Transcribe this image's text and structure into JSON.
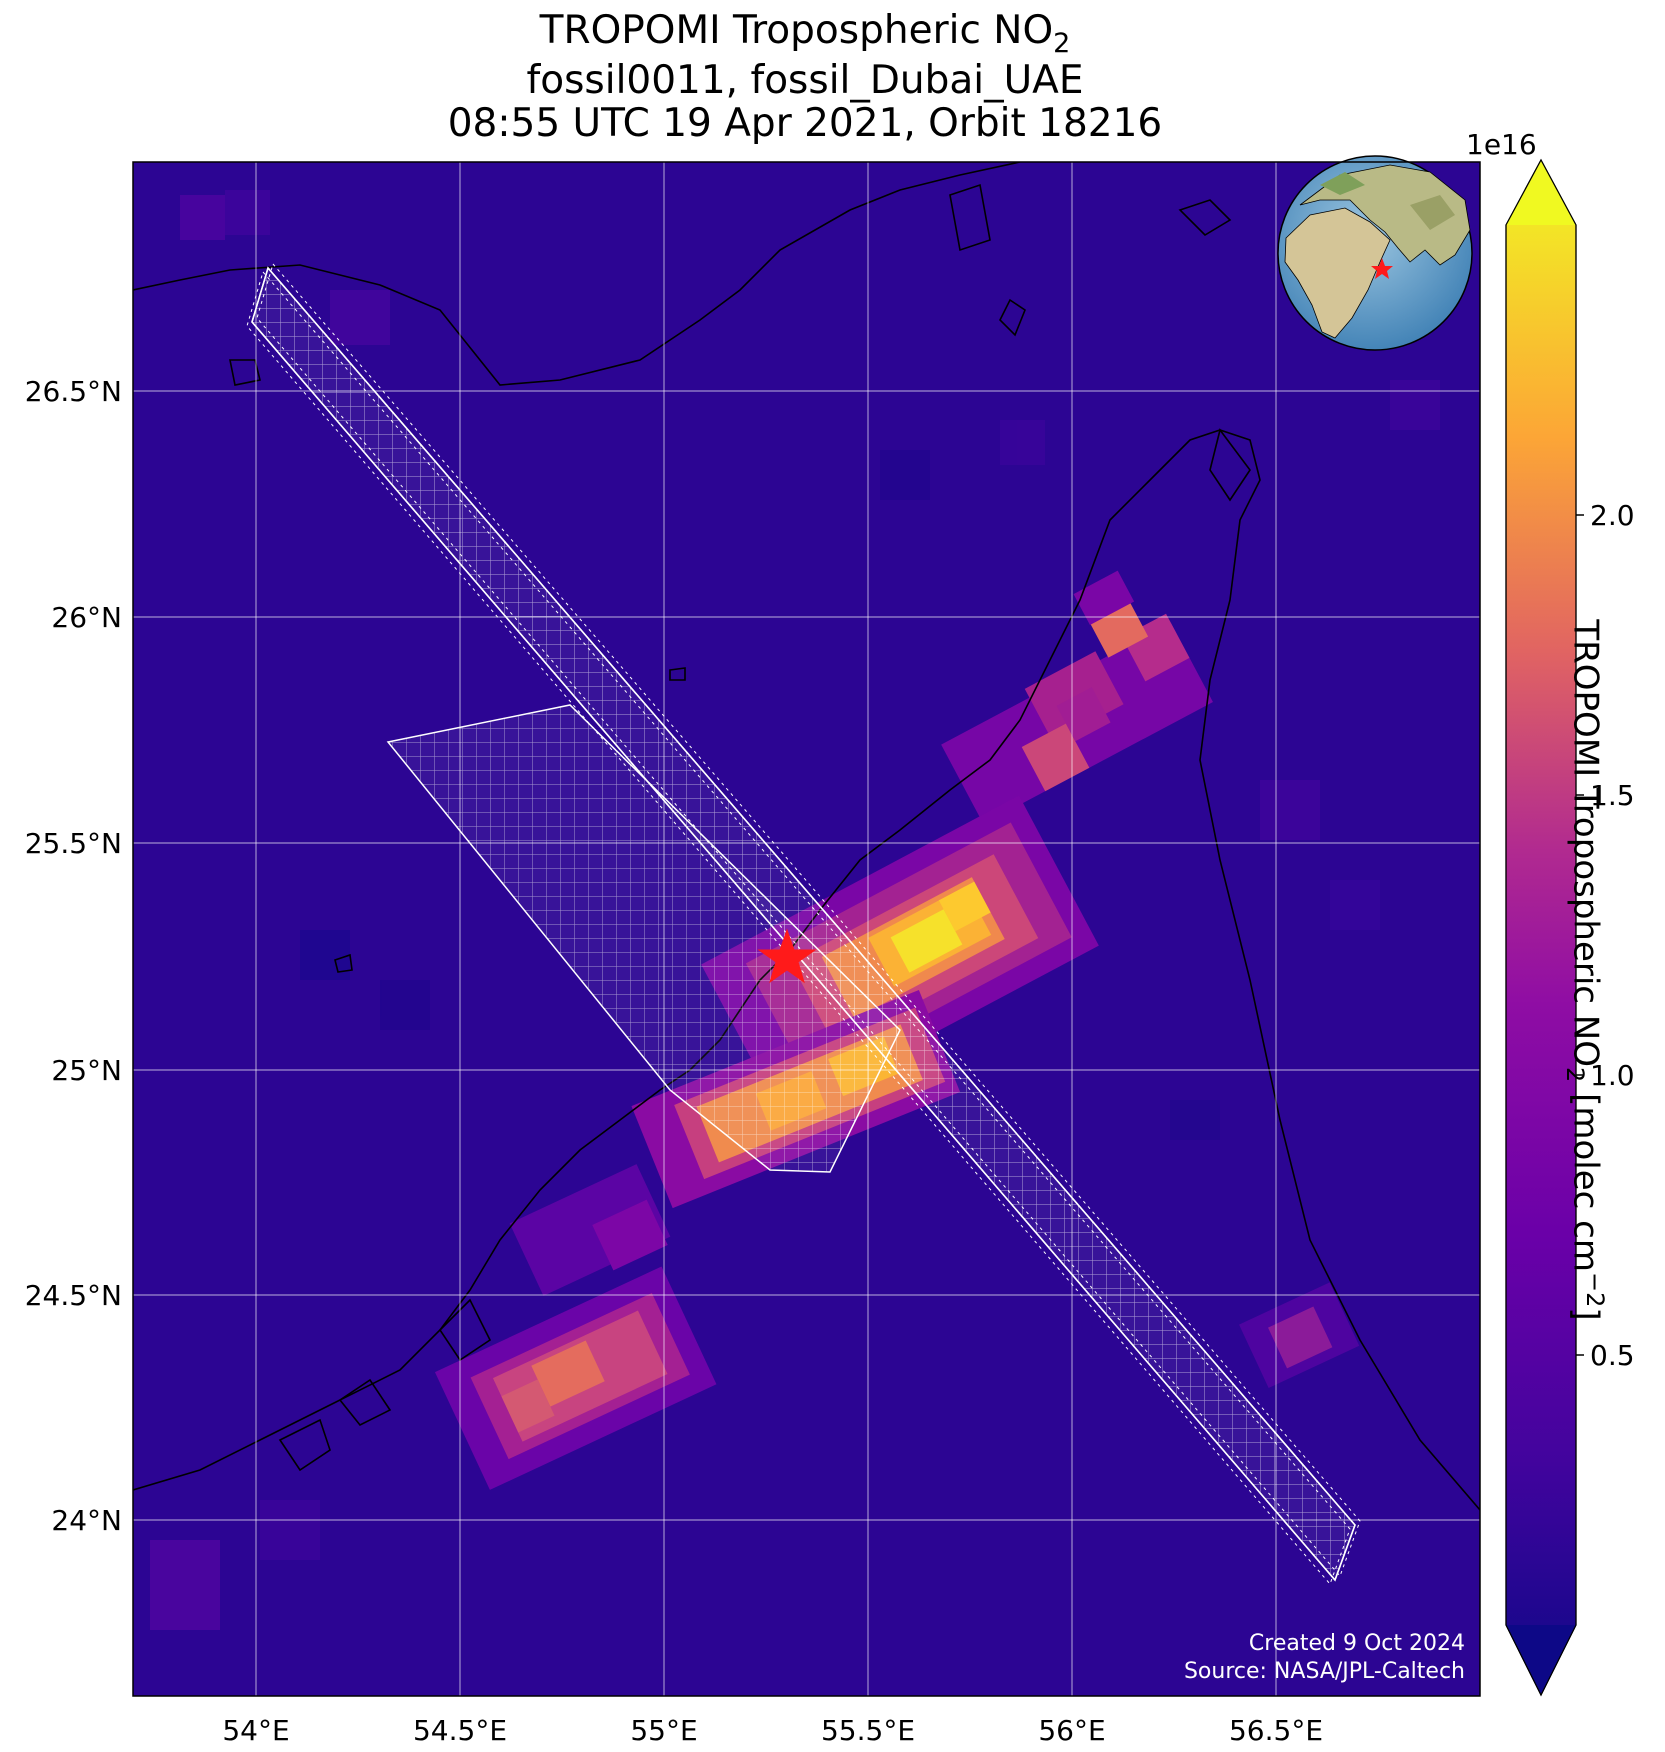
{
  "title": {
    "line1_prefix": "TROPOMI Tropospheric NO",
    "line1_sub": "2",
    "line2": "fossil0011, fossil_Dubai_UAE",
    "line3": "08:55 UTC 19 Apr 2021, Orbit 18216"
  },
  "map": {
    "lon_ticks": [
      "54°E",
      "54.5°E",
      "55°E",
      "55.5°E",
      "56°E",
      "56.5°E"
    ],
    "lat_ticks": [
      "26.5°N",
      "26°N",
      "25.5°N",
      "25°N",
      "24.5°N",
      "24°N"
    ],
    "target_marker": "red-star",
    "target_color": "#ff1a1a",
    "credit_line1": "Created 9 Oct 2024",
    "credit_line2": "Source: NASA/JPL-Caltech"
  },
  "colorbar": {
    "label_prefix": "TROPOMI Tropospheric NO",
    "label_sub": "2",
    "label_mid": " [molec cm",
    "label_sup": "−2",
    "label_suffix": "]",
    "exponent": "1e16",
    "ticks": [
      "0.5",
      "1.0",
      "1.5",
      "2.0"
    ],
    "colormap": "plasma",
    "colors": [
      "#0d0887",
      "#6a00a8",
      "#b12a90",
      "#e16462",
      "#fca636",
      "#f0f921"
    ]
  }
}
